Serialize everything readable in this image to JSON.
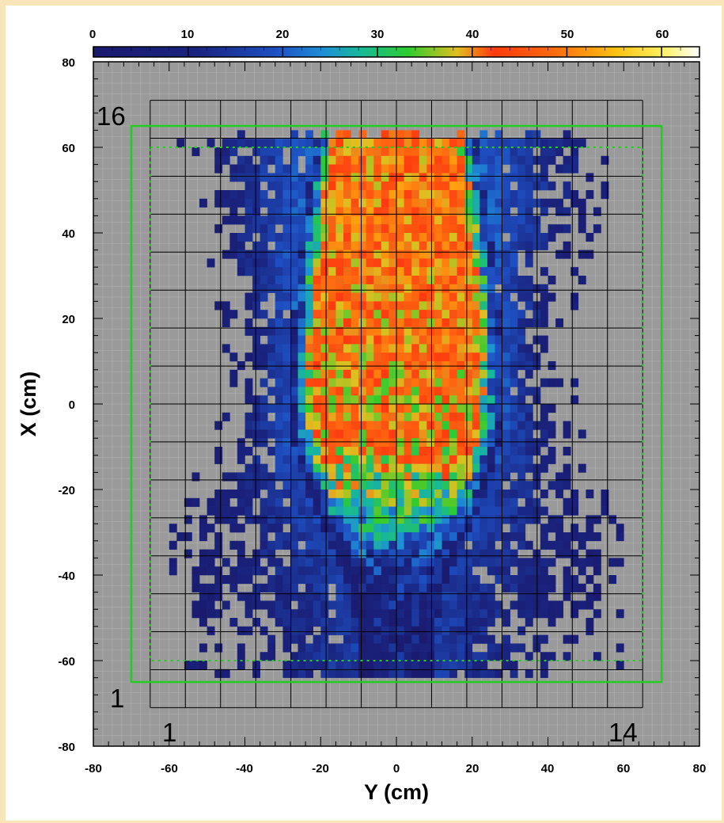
{
  "chart_data": {
    "type": "heatmap",
    "title": "",
    "xlabel": "Y (cm)",
    "ylabel": "X (cm)",
    "xlim": [
      -80,
      80
    ],
    "ylim": [
      -80,
      80
    ],
    "x_ticks": [
      "-80",
      "-60",
      "-40",
      "-20",
      "0",
      "20",
      "40",
      "60",
      "80"
    ],
    "y_ticks": [
      "80",
      "60",
      "40",
      "20",
      "0",
      "-20",
      "-40",
      "-60",
      "-80"
    ],
    "colorbar": {
      "range": [
        0,
        64
      ],
      "tick_labels": [
        "0",
        "10",
        "20",
        "30",
        "40",
        "50",
        "60"
      ]
    },
    "detector_grid": {
      "columns": 14,
      "rows": 16,
      "y_range": [
        -65,
        65
      ],
      "x_range": [
        -71,
        71
      ]
    },
    "outer_boundary": {
      "y_range": [
        -70,
        70
      ],
      "x_range": [
        -65,
        65
      ],
      "style": "solid",
      "color": "#22cc22"
    },
    "inner_boundary": {
      "y_range": [
        -65,
        65
      ],
      "x_range": [
        -60,
        60
      ],
      "style": "dotted",
      "color": "#22cc22"
    },
    "cell_labels": {
      "top_left": "16",
      "bottom_left_row": "1",
      "bottom_left_col": "1",
      "bottom_right_col": "14"
    },
    "intensity_profile": {
      "description_units": "counts per bin (colour scale 0-64)",
      "x_rows": [
        {
          "x": 58,
          "core_halfwidth": 22,
          "core_level": 44,
          "halo_halfwidth": 49,
          "halo_level": 8
        },
        {
          "x": 45,
          "core_halfwidth": 24,
          "core_level": 45,
          "halo_halfwidth": 47,
          "halo_level": 8
        },
        {
          "x": 30,
          "core_halfwidth": 26,
          "core_level": 44,
          "halo_halfwidth": 42,
          "halo_level": 8
        },
        {
          "x": 10,
          "core_halfwidth": 28,
          "core_level": 42,
          "halo_halfwidth": 38,
          "halo_level": 7
        },
        {
          "x": -10,
          "core_halfwidth": 27,
          "core_level": 40,
          "halo_halfwidth": 42,
          "halo_level": 7
        },
        {
          "x": -25,
          "core_halfwidth": 22,
          "core_level": 30,
          "halo_halfwidth": 50,
          "halo_level": 5
        },
        {
          "x": -40,
          "core_halfwidth": 14,
          "core_level": 13,
          "halo_halfwidth": 55,
          "halo_level": 4
        },
        {
          "x": -55,
          "core_halfwidth": 10,
          "core_level": 7,
          "halo_halfwidth": 52,
          "halo_level": 3
        }
      ]
    }
  }
}
